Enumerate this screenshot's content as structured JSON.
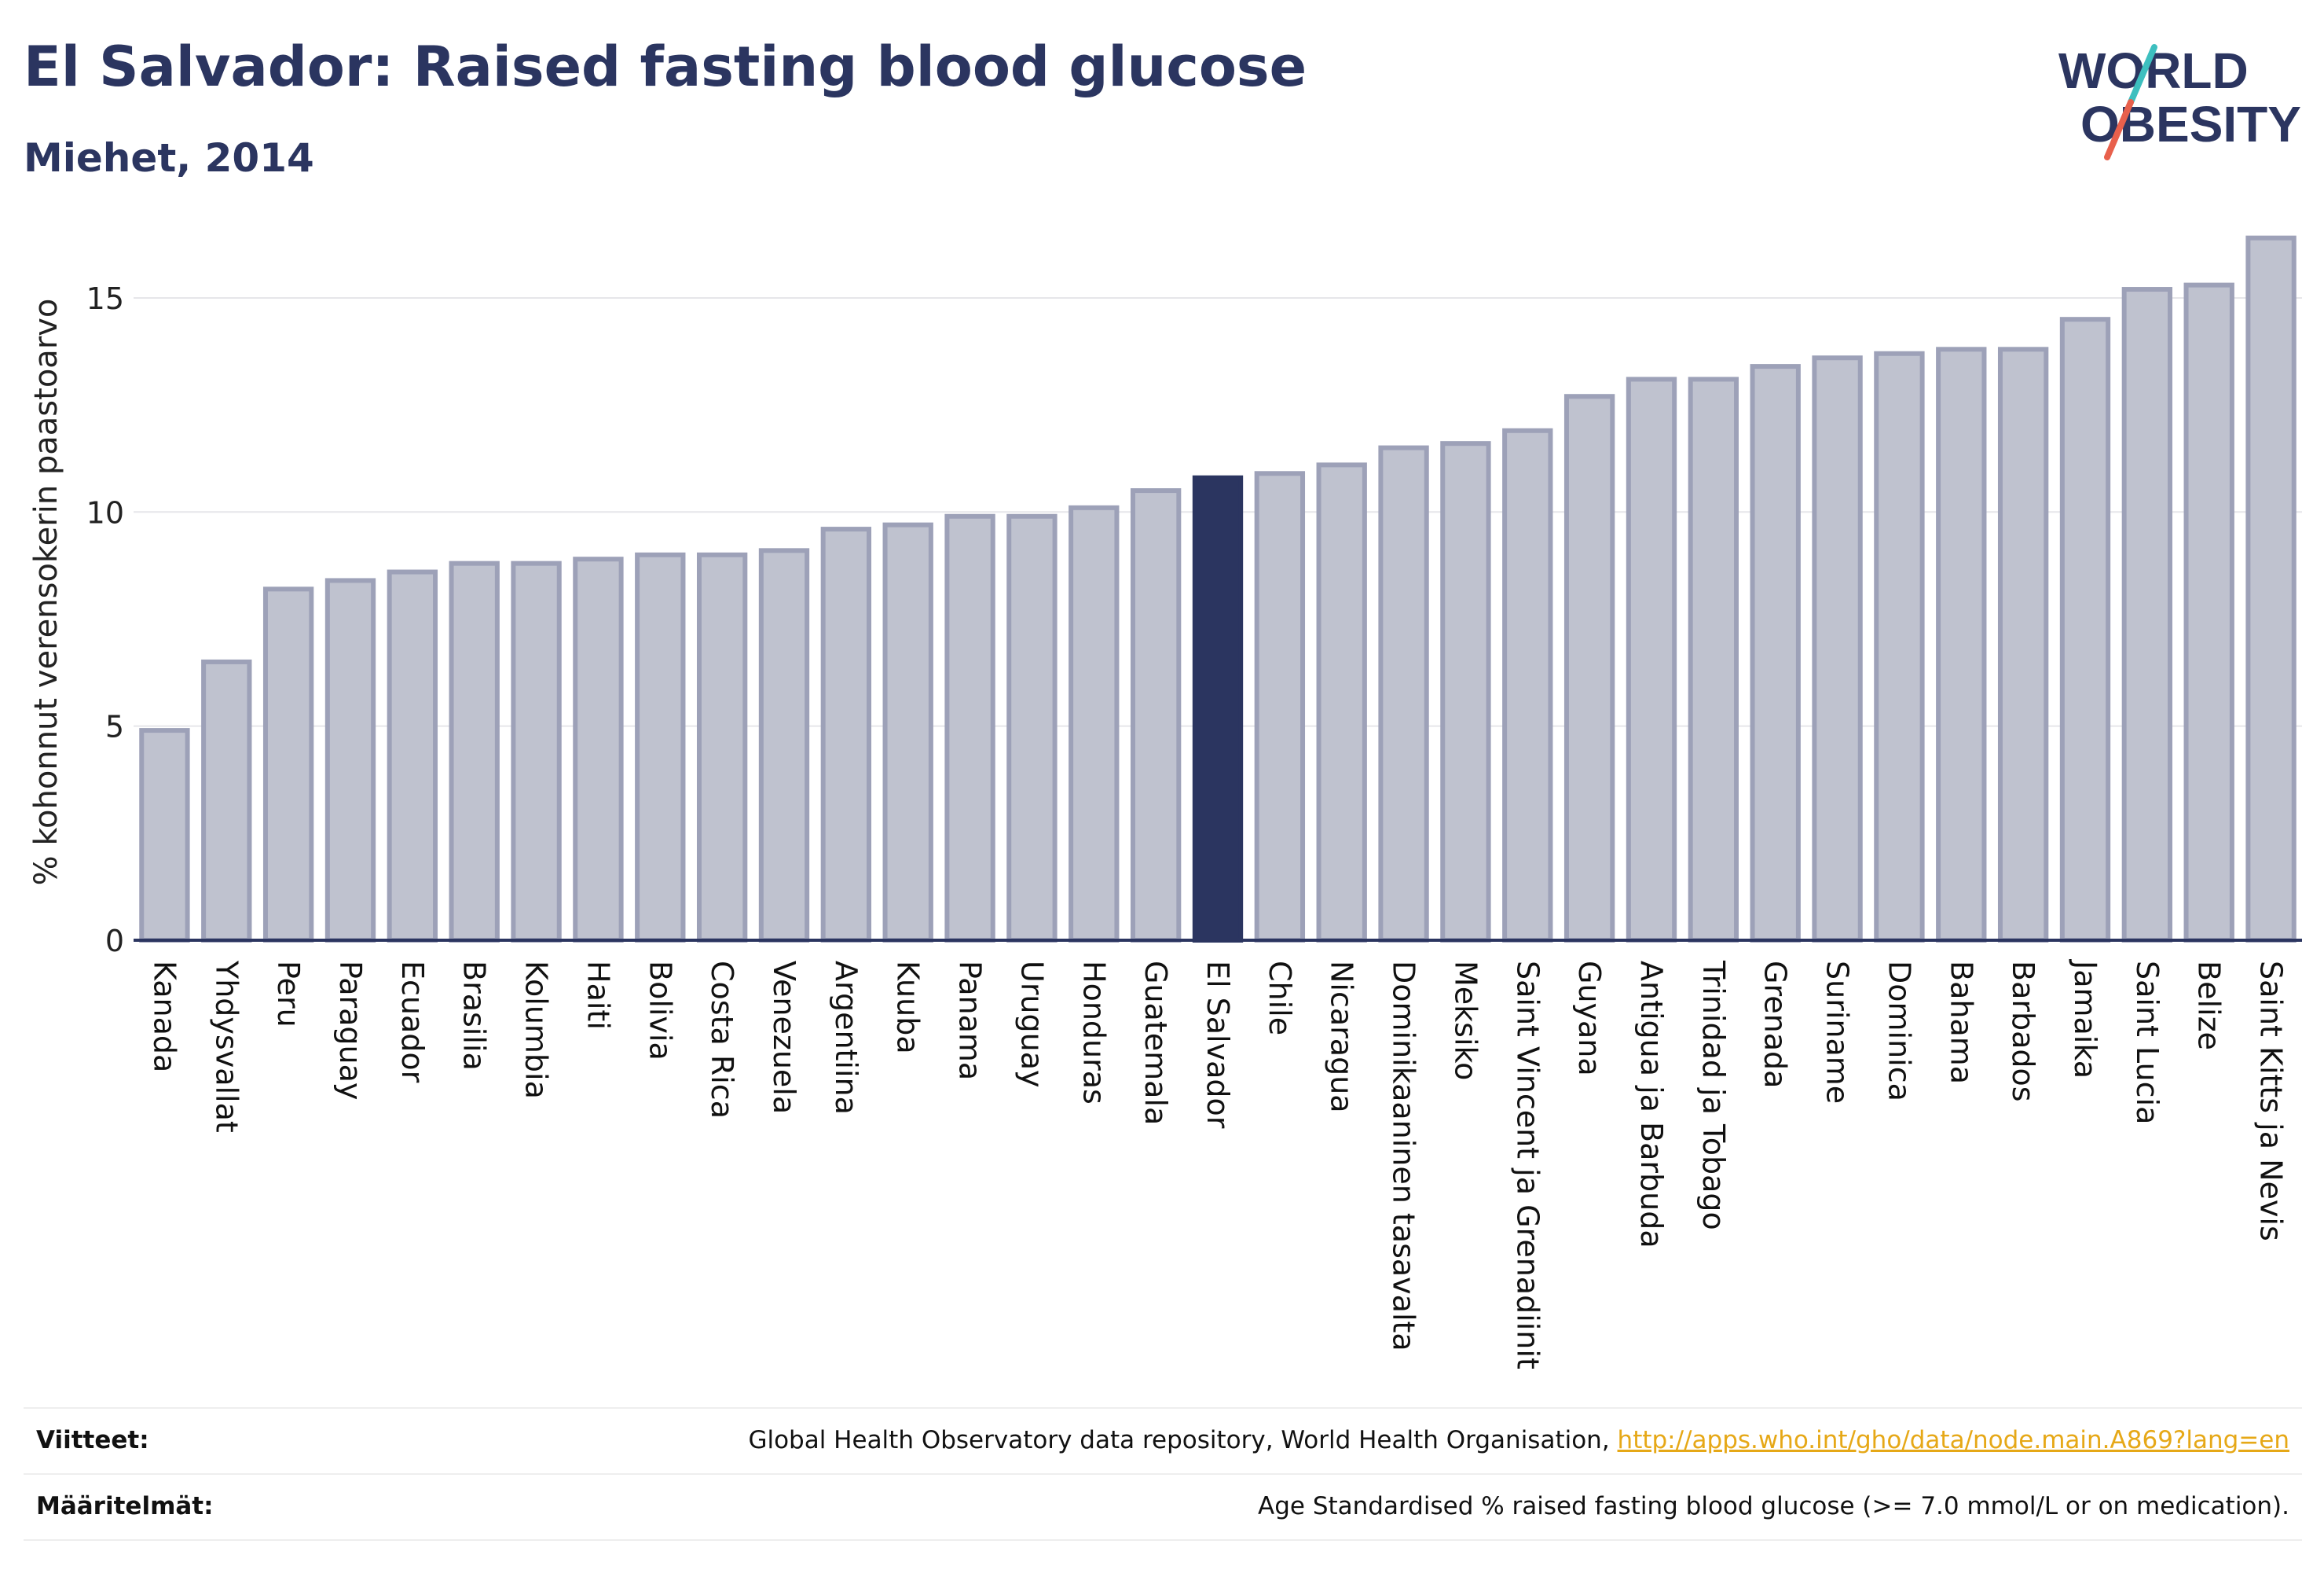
{
  "header": {
    "title": "El Salvador: Raised fasting blood glucose",
    "subtitle": "Miehet, 2014"
  },
  "logo": {
    "line1": "WORLD",
    "line2": "OBESITY",
    "colors": {
      "text": "#2b3560",
      "slash_top": "#3dbfbf",
      "slash_bottom": "#e8604c"
    }
  },
  "footer": {
    "sources_label": "Viitteet:",
    "sources_text": "Global Health Observatory data repository, World Health Organisation, ",
    "sources_link": "http://apps.who.int/gho/data/node.main.A869?lang=en",
    "definitions_label": "Määritelmät:",
    "definitions_text": "Age Standardised % raised fasting blood glucose (>= 7.0 mmol/L or on medication)."
  },
  "chart_data": {
    "type": "bar",
    "title": "El Salvador: Raised fasting blood glucose",
    "subtitle": "Miehet, 2014",
    "ylabel": "% kohonnut verensokerin paastoarvo",
    "xlabel": "",
    "ylim": [
      0,
      17
    ],
    "yticks": [
      0,
      5,
      10,
      15
    ],
    "grid": true,
    "highlight": "El Salvador",
    "colors": {
      "bar": "#bfc2cf",
      "bar_border": "#9da1b8",
      "highlight": "#2b3560"
    },
    "categories": [
      "Kanada",
      "Yhdysvallat",
      "Peru",
      "Paraguay",
      "Ecuador",
      "Brasilia",
      "Kolumbia",
      "Haiti",
      "Bolivia",
      "Costa Rica",
      "Venezuela",
      "Argentiina",
      "Kuuba",
      "Panama",
      "Uruguay",
      "Honduras",
      "Guatemala",
      "El Salvador",
      "Chile",
      "Nicaragua",
      "Dominikaaninen tasavalta",
      "Meksiko",
      "Saint Vincent ja Grenadiinit",
      "Guyana",
      "Antigua ja Barbuda",
      "Trinidad ja Tobago",
      "Grenada",
      "Suriname",
      "Dominica",
      "Bahama",
      "Barbados",
      "Jamaika",
      "Saint Lucia",
      "Belize",
      "Saint Kitts ja Nevis"
    ],
    "values": [
      4.9,
      6.5,
      8.2,
      8.4,
      8.6,
      8.8,
      8.8,
      8.9,
      9.0,
      9.0,
      9.1,
      9.6,
      9.7,
      9.9,
      9.9,
      10.1,
      10.5,
      10.8,
      10.9,
      11.1,
      11.5,
      11.6,
      11.9,
      12.7,
      13.1,
      13.1,
      13.4,
      13.6,
      13.7,
      13.8,
      13.8,
      14.5,
      15.2,
      15.3,
      16.4
    ]
  }
}
